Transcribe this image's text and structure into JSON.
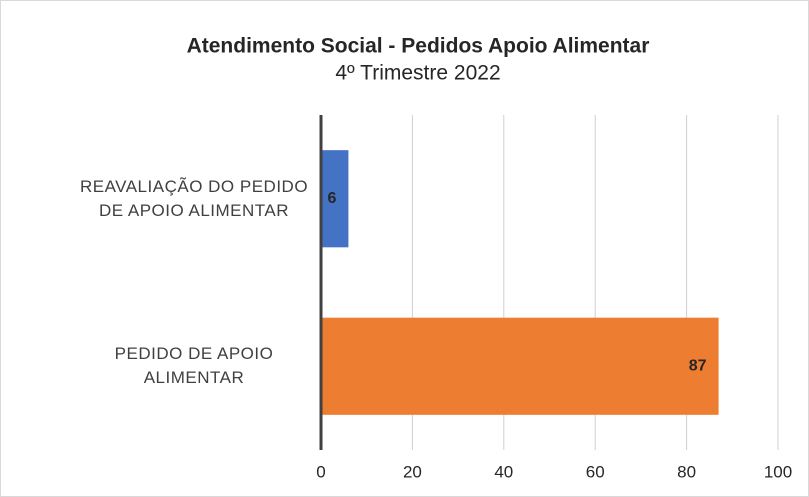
{
  "chart_data": {
    "type": "barh",
    "title": "Atendimento Social - Pedidos Apoio Alimentar",
    "subtitle": "4º Trimestre 2022",
    "categories": [
      "REAVALIAÇÃO DO PEDIDO DE APOIO ALIMENTAR",
      "PEDIDO DE APOIO ALIMENTAR"
    ],
    "values": [
      6,
      87
    ],
    "colors": [
      "#4472c4",
      "#ed7d31"
    ],
    "xlim": [
      0,
      100
    ],
    "xticks": [
      0,
      20,
      40,
      60,
      80,
      100
    ],
    "grid": true
  }
}
